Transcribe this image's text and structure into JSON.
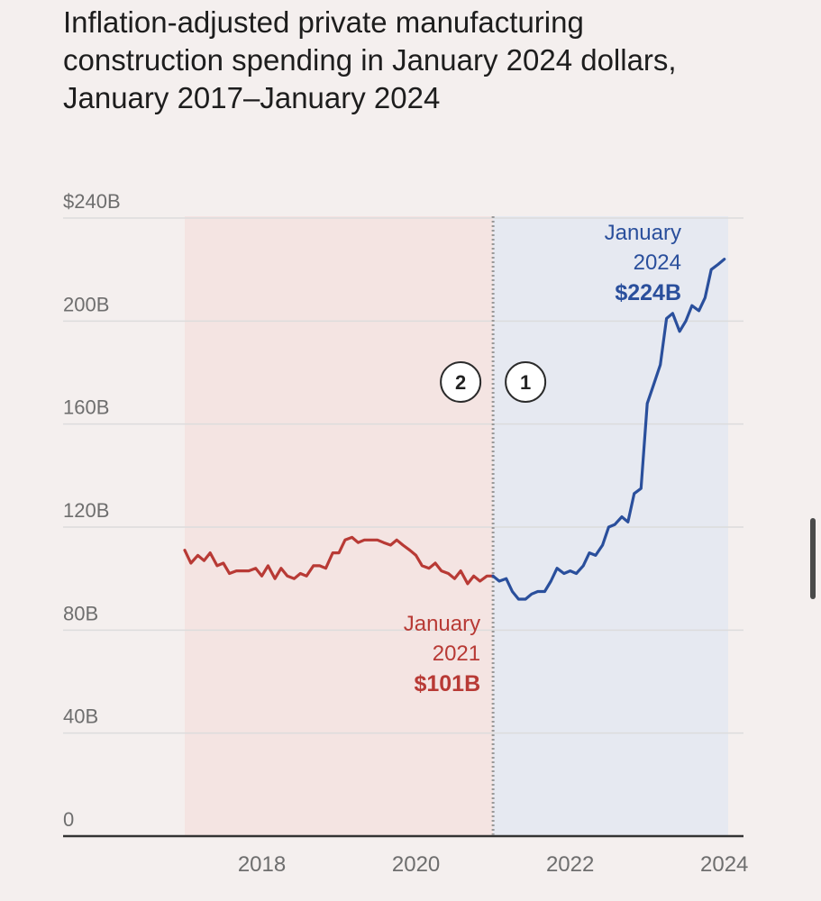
{
  "chart_data": {
    "type": "line",
    "title": "Inflation-adjusted private manufacturing construction spending in January 2024 dollars, January 2017–January 2024",
    "xlabel": "",
    "ylabel": "",
    "ylim": [
      0,
      240
    ],
    "xlim": [
      2017.0,
      2024.05
    ],
    "x_ticks": [
      2018,
      2020,
      2022,
      2024
    ],
    "x_tick_labels": [
      "2018",
      "2020",
      "2022",
      "2024"
    ],
    "y_ticks": [
      0,
      40,
      80,
      120,
      160,
      200,
      240
    ],
    "y_tick_labels": [
      "0",
      "40B",
      "80B",
      "120B",
      "160B",
      "200B",
      "$240B"
    ],
    "grid": true,
    "period_split": 2021.0,
    "markers": [
      {
        "label": "2",
        "side": "left"
      },
      {
        "label": "1",
        "side": "right"
      }
    ],
    "series": [
      {
        "color": "#b83a35",
        "x": [
          2017.0,
          2017.08,
          2017.17,
          2017.25,
          2017.33,
          2017.42,
          2017.5,
          2017.58,
          2017.67,
          2017.75,
          2017.83,
          2017.92,
          2018.0,
          2018.08,
          2018.17,
          2018.25,
          2018.33,
          2018.42,
          2018.5,
          2018.58,
          2018.67,
          2018.75,
          2018.83,
          2018.92,
          2019.0,
          2019.08,
          2019.17,
          2019.25,
          2019.33,
          2019.42,
          2019.5,
          2019.58,
          2019.67,
          2019.75,
          2019.83,
          2019.92,
          2020.0,
          2020.08,
          2020.17,
          2020.25,
          2020.33,
          2020.42,
          2020.5,
          2020.58,
          2020.67,
          2020.75,
          2020.83,
          2020.92,
          2021.0
        ],
        "values": [
          111,
          106,
          109,
          107,
          110,
          105,
          106,
          102,
          103,
          103,
          103,
          104,
          101,
          105,
          100,
          104,
          101,
          100,
          102,
          101,
          105,
          105,
          104,
          110,
          110,
          115,
          116,
          114,
          115,
          115,
          115,
          114,
          113,
          115,
          113,
          111,
          109,
          105,
          104,
          106,
          103,
          102,
          100,
          103,
          98,
          101,
          99,
          101,
          101
        ]
      },
      {
        "color": "#2a4f9c",
        "x": [
          2021.0,
          2021.08,
          2021.17,
          2021.25,
          2021.33,
          2021.42,
          2021.5,
          2021.58,
          2021.67,
          2021.75,
          2021.83,
          2021.92,
          2022.0,
          2022.08,
          2022.17,
          2022.25,
          2022.33,
          2022.42,
          2022.5,
          2022.58,
          2022.67,
          2022.75,
          2022.83,
          2022.92,
          2023.0,
          2023.08,
          2023.17,
          2023.25,
          2023.33,
          2023.42,
          2023.5,
          2023.58,
          2023.67,
          2023.75,
          2023.83,
          2023.92,
          2024.0
        ],
        "values": [
          101,
          99,
          100,
          95,
          92,
          92,
          94,
          95,
          95,
          99,
          104,
          102,
          103,
          102,
          105,
          110,
          109,
          113,
          120,
          121,
          124,
          122,
          133,
          135,
          168,
          175,
          183,
          201,
          203,
          196,
          200,
          206,
          204,
          209,
          220,
          222,
          224
        ]
      }
    ],
    "annotations": [
      {
        "line1": "January",
        "line2": "2021",
        "value": "$101B",
        "color": "#b83a35"
      },
      {
        "line1": "January",
        "line2": "2024",
        "value": "$224B",
        "color": "#2a4f9c"
      }
    ],
    "colors": {
      "before_band": "#f4e4e2",
      "after_band": "#e6e9f1",
      "grid": "#dcdcdc",
      "axis": "#333333",
      "tick_text": "#6e6e6e",
      "divider": "#999999"
    }
  }
}
